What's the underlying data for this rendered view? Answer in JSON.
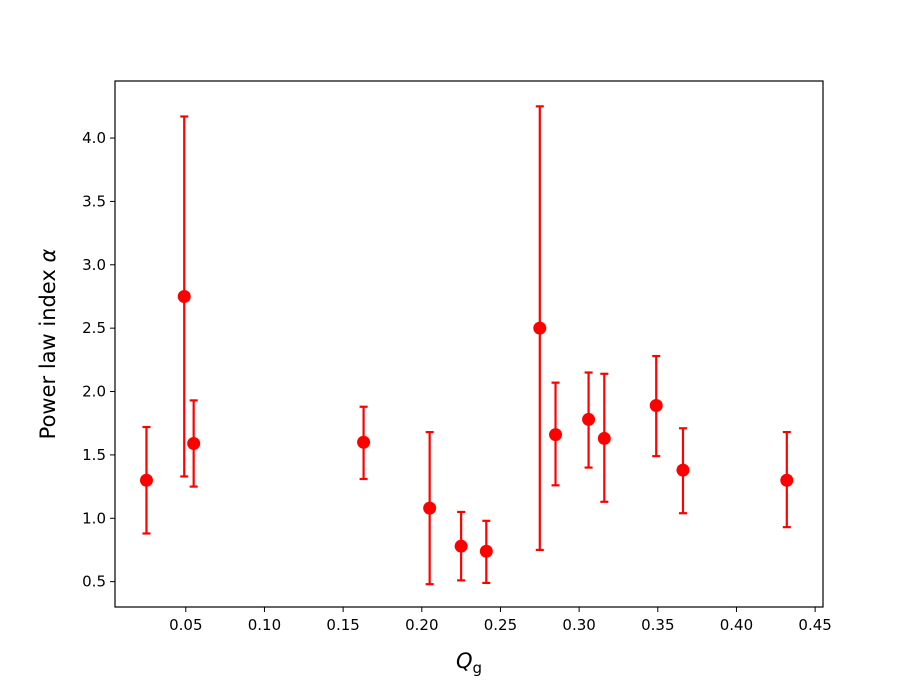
{
  "chart_data": {
    "type": "scatter",
    "xlabel": "Q",
    "xlabel_sub": "g",
    "ylabel": "Power law index ",
    "ylabel_symbol": "α",
    "xlim": [
      0.005,
      0.455
    ],
    "ylim": [
      0.3,
      4.45
    ],
    "xticks": [
      "0.05",
      "0.10",
      "0.15",
      "0.20",
      "0.25",
      "0.30",
      "0.35",
      "0.40",
      "0.45"
    ],
    "yticks": [
      "0.5",
      "1.0",
      "1.5",
      "2.0",
      "2.5",
      "3.0",
      "3.5",
      "4.0"
    ],
    "grid": false,
    "color": "#ff0000",
    "points": [
      {
        "x": 0.025,
        "y": 1.3,
        "ylow": 0.88,
        "yhigh": 1.72
      },
      {
        "x": 0.049,
        "y": 2.75,
        "ylow": 1.33,
        "yhigh": 4.17
      },
      {
        "x": 0.055,
        "y": 1.59,
        "ylow": 1.25,
        "yhigh": 1.93
      },
      {
        "x": 0.163,
        "y": 1.6,
        "ylow": 1.31,
        "yhigh": 1.88
      },
      {
        "x": 0.205,
        "y": 1.08,
        "ylow": 0.48,
        "yhigh": 1.68
      },
      {
        "x": 0.225,
        "y": 0.78,
        "ylow": 0.51,
        "yhigh": 1.05
      },
      {
        "x": 0.241,
        "y": 0.74,
        "ylow": 0.49,
        "yhigh": 0.98
      },
      {
        "x": 0.275,
        "y": 2.5,
        "ylow": 0.75,
        "yhigh": 4.25
      },
      {
        "x": 0.285,
        "y": 1.66,
        "ylow": 1.26,
        "yhigh": 2.07
      },
      {
        "x": 0.306,
        "y": 1.78,
        "ylow": 1.4,
        "yhigh": 2.15
      },
      {
        "x": 0.316,
        "y": 1.63,
        "ylow": 1.13,
        "yhigh": 2.14
      },
      {
        "x": 0.349,
        "y": 1.89,
        "ylow": 1.49,
        "yhigh": 2.28
      },
      {
        "x": 0.366,
        "y": 1.38,
        "ylow": 1.04,
        "yhigh": 1.71
      },
      {
        "x": 0.432,
        "y": 1.3,
        "ylow": 0.93,
        "yhigh": 1.68
      }
    ]
  }
}
